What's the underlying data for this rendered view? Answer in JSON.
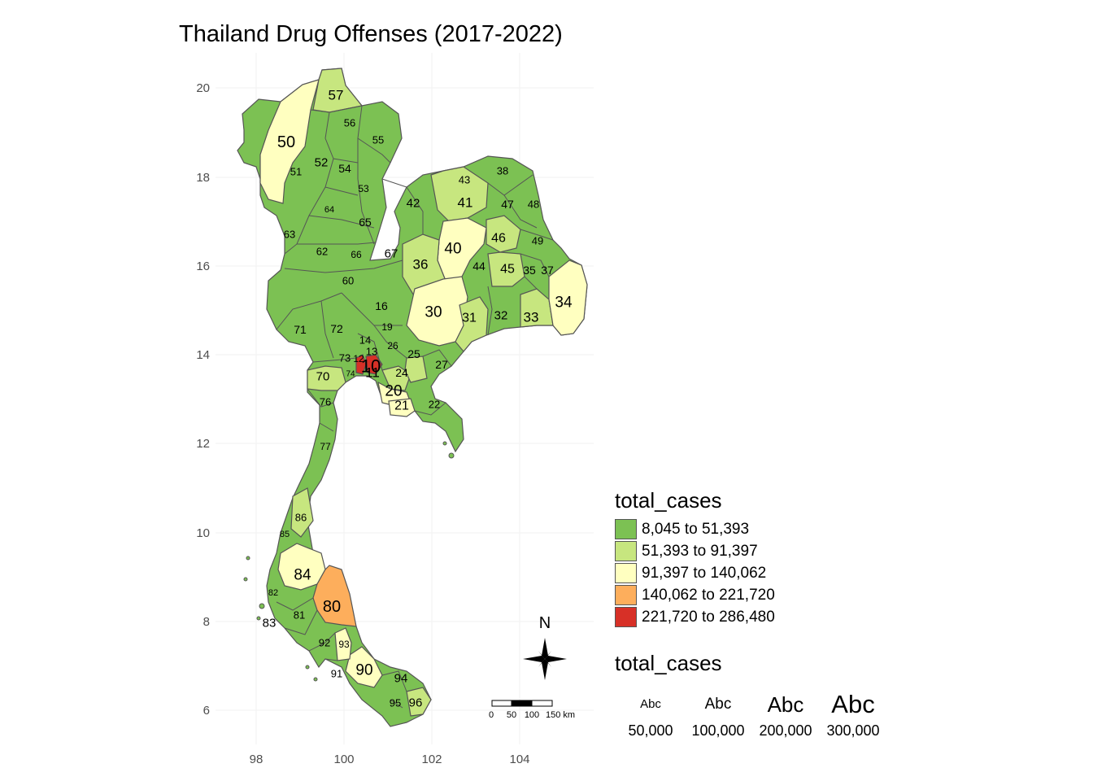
{
  "map": {
    "title": "Thailand Drug Offenses (2017-2022)",
    "x_ticks": [
      "98",
      "100",
      "102",
      "104"
    ],
    "y_ticks": [
      "20",
      "18",
      "16",
      "14",
      "12",
      "10",
      "8",
      "6"
    ],
    "province_labels": [
      "57",
      "50",
      "56",
      "55",
      "51",
      "52",
      "54",
      "53",
      "43",
      "38",
      "41",
      "47",
      "48",
      "42",
      "64",
      "65",
      "46",
      "49",
      "63",
      "40",
      "62",
      "66",
      "67",
      "36",
      "44",
      "45",
      "35",
      "37",
      "60",
      "34",
      "16",
      "30",
      "31",
      "32",
      "33",
      "71",
      "72",
      "19",
      "14",
      "26",
      "25",
      "13",
      "27",
      "73",
      "12",
      "10",
      "11",
      "70",
      "74",
      "24",
      "20",
      "76",
      "21",
      "22",
      "77",
      "86",
      "85",
      "84",
      "82",
      "80",
      "81",
      "83",
      "92",
      "93",
      "90",
      "91",
      "94",
      "95",
      "96"
    ],
    "colors": {
      "c1": "#7cc153",
      "c2": "#c7e67f",
      "c3": "#ffffc0",
      "c4": "#fdae5c",
      "c5": "#d73027"
    }
  },
  "legend_fill": {
    "title": "total_cases",
    "items": [
      {
        "label": "8,045 to 51,393",
        "color": "#7cc153"
      },
      {
        "label": "51,393 to 91,397",
        "color": "#c7e67f"
      },
      {
        "label": "91,397 to 140,062",
        "color": "#ffffc0"
      },
      {
        "label": "140,062 to 221,720",
        "color": "#fdae5c"
      },
      {
        "label": "221,720 to 286,480",
        "color": "#d73027"
      }
    ]
  },
  "legend_size": {
    "title": "total_cases",
    "sample_text": "Abc",
    "items": [
      "50,000",
      "100,000",
      "200,000",
      "300,000"
    ]
  },
  "compass": {
    "label": "N"
  },
  "scalebar": {
    "labels": [
      "0",
      "50",
      "100",
      "150 km"
    ]
  }
}
